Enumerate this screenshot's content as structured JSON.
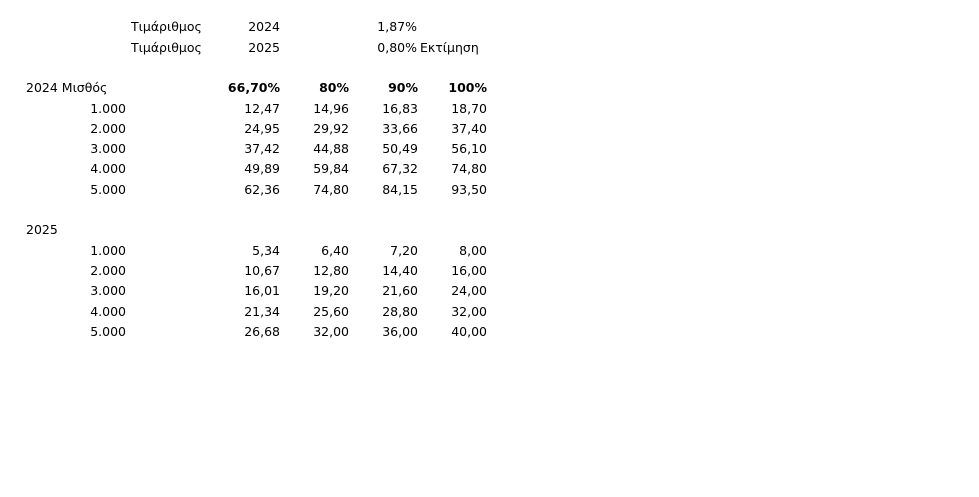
{
  "header": {
    "rows": [
      {
        "label": "Τιμάριθμος",
        "year": "2024",
        "rate": "1,87%",
        "note": ""
      },
      {
        "label": "Τιμάριθμος",
        "year": "2025",
        "rate": "0,80%",
        "note": "Εκτίμηση"
      }
    ]
  },
  "section_2024": {
    "title": "2024 Μισθός",
    "columns": [
      "66,70%",
      "80%",
      "90%",
      "100%"
    ],
    "rows": [
      {
        "salary": "1.000",
        "values": [
          "12,47",
          "14,96",
          "16,83",
          "18,70"
        ]
      },
      {
        "salary": "2.000",
        "values": [
          "24,95",
          "29,92",
          "33,66",
          "37,40"
        ]
      },
      {
        "salary": "3.000",
        "values": [
          "37,42",
          "44,88",
          "50,49",
          "56,10"
        ]
      },
      {
        "salary": "4.000",
        "values": [
          "49,89",
          "59,84",
          "67,32",
          "74,80"
        ]
      },
      {
        "salary": "5.000",
        "values": [
          "62,36",
          "74,80",
          "84,15",
          "93,50"
        ]
      }
    ]
  },
  "section_2025": {
    "title": "2025",
    "rows": [
      {
        "salary": "1.000",
        "values": [
          "5,34",
          "6,40",
          "7,20",
          "8,00"
        ]
      },
      {
        "salary": "2.000",
        "values": [
          "10,67",
          "12,80",
          "14,40",
          "16,00"
        ]
      },
      {
        "salary": "3.000",
        "values": [
          "16,01",
          "19,20",
          "21,60",
          "24,00"
        ]
      },
      {
        "salary": "4.000",
        "values": [
          "21,34",
          "25,60",
          "28,80",
          "32,00"
        ]
      },
      {
        "salary": "5.000",
        "values": [
          "26,68",
          "32,00",
          "36,00",
          "40,00"
        ]
      }
    ]
  }
}
